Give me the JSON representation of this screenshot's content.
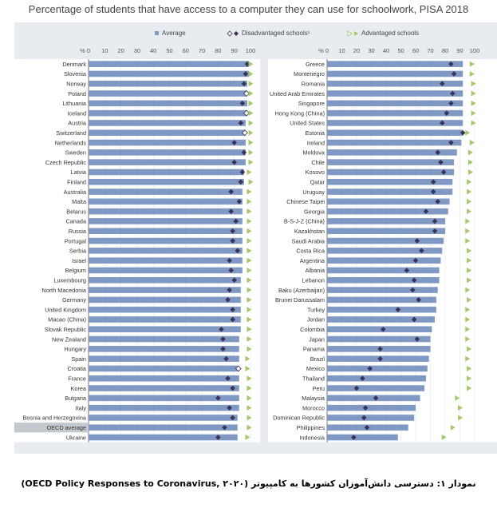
{
  "chart_data": {
    "type": "bar",
    "title": "Percentage of students that have access to a computer they can use for schoolwork, PISA 2018",
    "axis_label": "% 0",
    "ticks": [
      0,
      10,
      20,
      30,
      40,
      50,
      60,
      70,
      80,
      90,
      100
    ],
    "xlim": [
      0,
      100
    ],
    "legend": {
      "average": "Average",
      "disadvantaged": "Disadvantaged schools¹",
      "advantaged": "Advantaged schools"
    },
    "colors": {
      "bar": "#7f99c4",
      "disadvantaged": "#3b3355",
      "advantaged": "#a4c86a",
      "panel": "#ffffff",
      "frame": "#e8ecf1",
      "highlight": "#c3c9cf"
    },
    "highlight_category": "OECD average",
    "left_panel": {
      "categories": [
        "Denmark",
        "Slovenia",
        "Norway",
        "Poland",
        "Lithuania",
        "Iceland",
        "Austria",
        "Switzerland",
        "Netherlands",
        "Sweden",
        "Czech Republic",
        "Latvia",
        "Finland",
        "Australia",
        "Malta",
        "Belarus",
        "Canada",
        "Russia",
        "Portugal",
        "Serbia",
        "Israel",
        "Belgium",
        "Luxembourg",
        "North Macedonia",
        "Germany",
        "United Kingdom",
        "Macao (China)",
        "Slovak Republic",
        "New Zealand",
        "Hungary",
        "Spain",
        "Croatia",
        "France",
        "Korea",
        "Bulgaria",
        "Italy",
        "Bosnia and Herzegovina",
        "OECD average",
        "Ukraine"
      ],
      "average": [
        99,
        99,
        98,
        98,
        98,
        98,
        97,
        97,
        97,
        97,
        97,
        96,
        96,
        95,
        95,
        95,
        95,
        95,
        95,
        95,
        95,
        95,
        94,
        94,
        94,
        94,
        94,
        94,
        93,
        93,
        93,
        93,
        93,
        93,
        93,
        93,
        92,
        92,
        92
      ],
      "disadvantaged": [
        98,
        97,
        96,
        null,
        95,
        null,
        94,
        null,
        90,
        96,
        90,
        95,
        94,
        88,
        93,
        88,
        91,
        89,
        89,
        92,
        87,
        88,
        90,
        87,
        86,
        89,
        89,
        82,
        83,
        83,
        85,
        null,
        86,
        89,
        80,
        87,
        89,
        84,
        80
      ],
      "advantaged": [
        100,
        100,
        100,
        100,
        100,
        100,
        100,
        100,
        100,
        100,
        100,
        99,
        100,
        99,
        99,
        99,
        99,
        99,
        99,
        99,
        99,
        99,
        99,
        99,
        99,
        99,
        99,
        99,
        99,
        99,
        98,
        98,
        99,
        99,
        99,
        99,
        99,
        99,
        98
      ]
    },
    "right_panel": {
      "categories": [
        "Greece",
        "Montenegro",
        "Romania",
        "United Arab Emirates",
        "Singapore",
        "Hong Kong (China)",
        "United States",
        "Estonia",
        "Ireland",
        "Moldova",
        "Chile",
        "Kosovo",
        "Qatar",
        "Uruguay",
        "Chinese Taipei",
        "Georgia",
        "B-S-J-Z (China)",
        "Kazakhstan",
        "Saudi Arabia",
        "Costa Rica",
        "Argentina",
        "Albania",
        "Lebanon",
        "Baku (Azerbaijan)",
        "Brunei Darussalam",
        "Turkey",
        "Jordan",
        "Colombia",
        "Japan",
        "Panama",
        "Brazil",
        "Mexico",
        "Thailand",
        "Peru",
        "Malaysia",
        "Morocco",
        "Dominican Republic",
        "Philippines",
        "Indonesia"
      ],
      "average": [
        92,
        92,
        92,
        92,
        92,
        92,
        92,
        92,
        91,
        88,
        86,
        86,
        85,
        85,
        83,
        82,
        80,
        80,
        79,
        78,
        77,
        76,
        76,
        75,
        74,
        74,
        73,
        71,
        70,
        70,
        69,
        68,
        67,
        66,
        63,
        60,
        59,
        55,
        48
      ],
      "disadvantaged": [
        84,
        86,
        78,
        85,
        84,
        81,
        78,
        92,
        84,
        75,
        77,
        79,
        72,
        72,
        75,
        67,
        73,
        73,
        61,
        64,
        60,
        54,
        59,
        58,
        62,
        48,
        59,
        38,
        61,
        36,
        36,
        29,
        24,
        20,
        33,
        26,
        25,
        27,
        18
      ],
      "advantaged": [
        98,
        98,
        99,
        99,
        99,
        99,
        99,
        95,
        98,
        97,
        97,
        97,
        96,
        96,
        96,
        96,
        95,
        95,
        95,
        96,
        96,
        96,
        96,
        95,
        96,
        95,
        95,
        95,
        95,
        96,
        95,
        96,
        96,
        96,
        88,
        90,
        90,
        85,
        79
      ]
    },
    "gridlines": true,
    "legend_position": "top"
  },
  "caption": {
    "text": "نمودار ۱: دسترسی دانش‌آموزان کشورها به کامپیوتر",
    "source": "(OECD Policy Responses to Coronavirus, ۲۰۲۰)"
  }
}
